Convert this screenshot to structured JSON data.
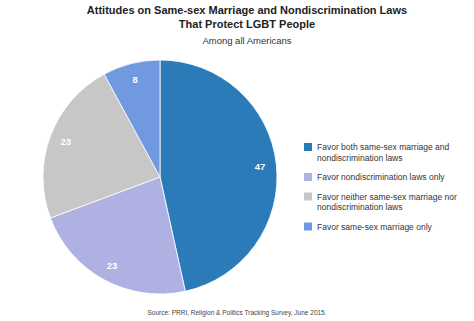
{
  "chart_data": {
    "type": "pie",
    "title": "Attitudes on Same-sex Marriage and Nondiscrimination Laws That Protect LGBT People",
    "subtitle": "Among all Americans",
    "categories": [
      "Favor both same-sex marriage and nondiscrimination laws",
      "Favor nondiscrimination laws only",
      "Favor neither same-sex marriage nor nondiscrimination laws",
      "Favor same-sex marriage only"
    ],
    "values": [
      47,
      23,
      23,
      8
    ],
    "colors": [
      "#2b7bb9",
      "#aeb1e2",
      "#c7c7c7",
      "#7199e0"
    ],
    "data_labels": true,
    "legend": "right",
    "source": "Source: PRRI, Religion & Politics Tracking Survey, June 2015."
  }
}
